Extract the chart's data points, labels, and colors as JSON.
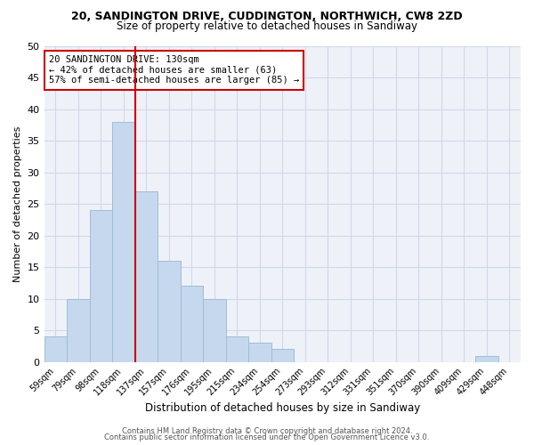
{
  "title": "20, SANDINGTON DRIVE, CUDDINGTON, NORTHWICH, CW8 2ZD",
  "subtitle": "Size of property relative to detached houses in Sandiway",
  "xlabel": "Distribution of detached houses by size in Sandiway",
  "ylabel": "Number of detached properties",
  "bar_labels": [
    "59sqm",
    "79sqm",
    "98sqm",
    "118sqm",
    "137sqm",
    "157sqm",
    "176sqm",
    "195sqm",
    "215sqm",
    "234sqm",
    "254sqm",
    "273sqm",
    "293sqm",
    "312sqm",
    "331sqm",
    "351sqm",
    "370sqm",
    "390sqm",
    "409sqm",
    "429sqm",
    "448sqm"
  ],
  "bar_values": [
    4,
    10,
    24,
    38,
    27,
    16,
    12,
    10,
    4,
    3,
    2,
    0,
    0,
    0,
    0,
    0,
    0,
    0,
    0,
    1,
    0
  ],
  "bar_color": "#c5d8ed",
  "bar_edge_color": "#a0bcd8",
  "vline_x_index": 3.5,
  "vline_color": "#cc0000",
  "annotation_text": "20 SANDINGTON DRIVE: 130sqm\n← 42% of detached houses are smaller (63)\n57% of semi-detached houses are larger (85) →",
  "annotation_box_color": "white",
  "annotation_box_edge_color": "#cc0000",
  "ylim": [
    0,
    50
  ],
  "yticks": [
    0,
    5,
    10,
    15,
    20,
    25,
    30,
    35,
    40,
    45,
    50
  ],
  "grid_color": "#d0d8e8",
  "bg_color": "#eef2f8",
  "footer_line1": "Contains HM Land Registry data © Crown copyright and database right 2024.",
  "footer_line2": "Contains public sector information licensed under the Open Government Licence v3.0."
}
